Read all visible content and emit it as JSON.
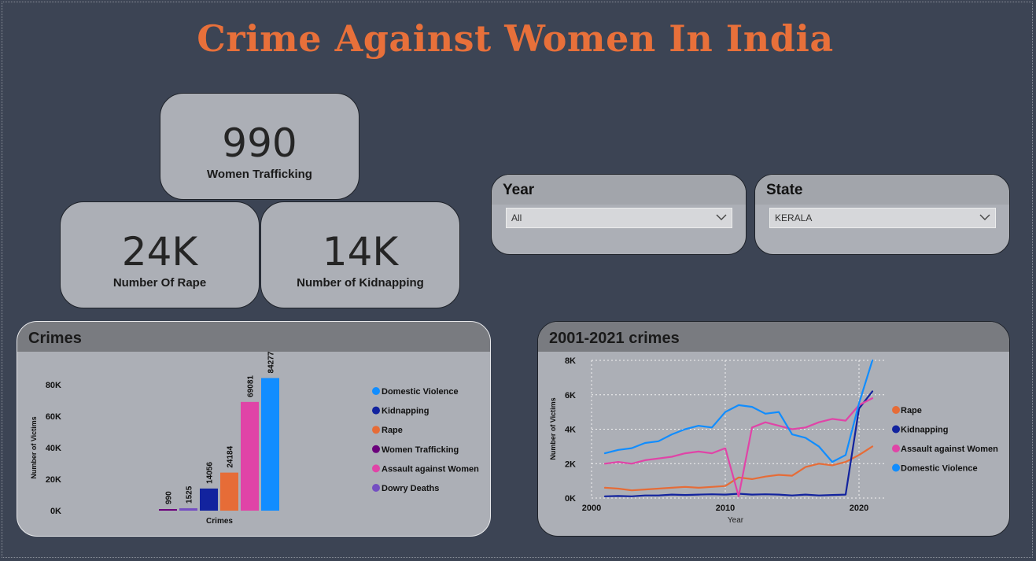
{
  "title": "Crime Against Women In India",
  "cards": {
    "trafficking": {
      "value": "990",
      "label": "Women Trafficking"
    },
    "rape": {
      "value": "24K",
      "label": "Number Of Rape"
    },
    "kidnapping": {
      "value": "14K",
      "label": "Number of Kidnapping"
    }
  },
  "slicers": {
    "year": {
      "title": "Year",
      "value": "All"
    },
    "state": {
      "title": "State",
      "value": "KERALA"
    }
  },
  "crimes_chart": {
    "title": "Crimes"
  },
  "trend_chart": {
    "title": "2001-2021 crimes"
  },
  "colors": {
    "domestic_violence": "#118dff",
    "kidnapping": "#12239e",
    "rape": "#e66c37",
    "women_trafficking": "#6b007b",
    "assault": "#e044a7",
    "dowry": "#744ec2"
  },
  "chart_data": [
    {
      "type": "bar",
      "title": "Crimes",
      "xlabel": "Crimes",
      "ylabel": "Number of Victims",
      "ylim": [
        0,
        80000
      ],
      "yticks": [
        "0K",
        "20K",
        "40K",
        "60K",
        "80K"
      ],
      "categories": [
        "Women Trafficking",
        "Dowry Deaths",
        "Kidnapping",
        "Rape",
        "Assault against Women",
        "Domestic Violence"
      ],
      "values": [
        990,
        1525,
        14056,
        24184,
        69081,
        84277
      ],
      "legend": [
        "Domestic Violence",
        "Kidnapping",
        "Rape",
        "Women Trafficking",
        "Assault against Women",
        "Dowry Deaths"
      ],
      "legend_position": "right",
      "grid": false
    },
    {
      "type": "line",
      "title": "2001-2021 crimes",
      "xlabel": "Year",
      "ylabel": "Number of Victims",
      "xlim": [
        2000,
        2022
      ],
      "ylim": [
        0,
        8000
      ],
      "xticks": [
        "2000",
        "2010",
        "2020"
      ],
      "yticks": [
        "0K",
        "2K",
        "4K",
        "6K",
        "8K"
      ],
      "grid": true,
      "legend_position": "right",
      "x": [
        2001,
        2002,
        2003,
        2004,
        2005,
        2006,
        2007,
        2008,
        2009,
        2010,
        2011,
        2012,
        2013,
        2014,
        2015,
        2016,
        2017,
        2018,
        2019,
        2020,
        2021
      ],
      "series": [
        {
          "name": "Rape",
          "values": [
            600,
            550,
            450,
            500,
            550,
            600,
            650,
            600,
            650,
            700,
            1200,
            1100,
            1250,
            1350,
            1300,
            1800,
            2000,
            1900,
            2100,
            2500,
            3000
          ]
        },
        {
          "name": "Kidnapping",
          "values": [
            100,
            120,
            100,
            150,
            150,
            200,
            180,
            200,
            220,
            200,
            250,
            200,
            220,
            200,
            150,
            200,
            150,
            180,
            200,
            5200,
            6200
          ]
        },
        {
          "name": "Assault against Women",
          "values": [
            2000,
            2100,
            2000,
            2200,
            2300,
            2400,
            2600,
            2700,
            2600,
            2900,
            100,
            4100,
            4400,
            4200,
            4000,
            4100,
            4400,
            4600,
            4500,
            5400,
            5800
          ]
        },
        {
          "name": "Domestic Violence",
          "values": [
            2600,
            2800,
            2900,
            3200,
            3300,
            3700,
            4000,
            4200,
            4100,
            5000,
            5400,
            5300,
            4900,
            5000,
            3700,
            3500,
            3000,
            2100,
            2500,
            5500,
            8000
          ]
        }
      ]
    }
  ]
}
